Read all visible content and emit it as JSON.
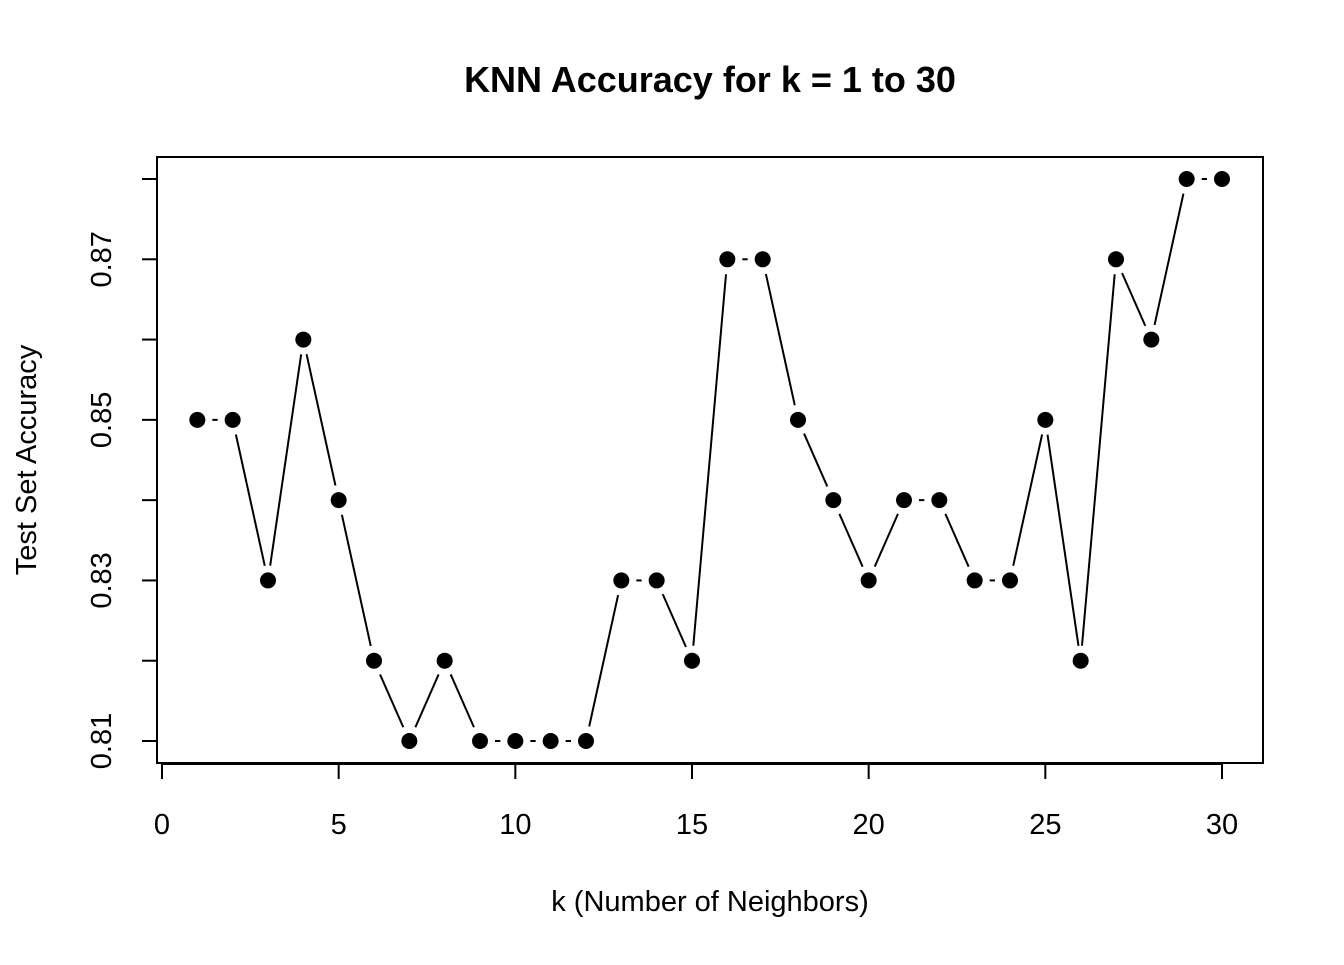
{
  "chart_data": {
    "type": "line",
    "title": "KNN Accuracy for k = 1 to 30",
    "xlabel": "k (Number of Neighbors)",
    "ylabel": "Test Set Accuracy",
    "x": [
      1,
      2,
      3,
      4,
      5,
      6,
      7,
      8,
      9,
      10,
      11,
      12,
      13,
      14,
      15,
      16,
      17,
      18,
      19,
      20,
      21,
      22,
      23,
      24,
      25,
      26,
      27,
      28,
      29,
      30
    ],
    "values": [
      0.85,
      0.85,
      0.83,
      0.86,
      0.84,
      0.82,
      0.81,
      0.82,
      0.81,
      0.81,
      0.81,
      0.81,
      0.83,
      0.83,
      0.82,
      0.87,
      0.87,
      0.85,
      0.84,
      0.83,
      0.84,
      0.84,
      0.83,
      0.83,
      0.85,
      0.82,
      0.87,
      0.86,
      0.88,
      0.88
    ],
    "xticks": [
      0,
      5,
      10,
      15,
      20,
      25,
      30
    ],
    "xtick_labels": [
      "0",
      "5",
      "10",
      "15",
      "20",
      "25",
      "30"
    ],
    "yticks": [
      0.81,
      0.82,
      0.83,
      0.84,
      0.85,
      0.86,
      0.87,
      0.88
    ],
    "ytick_labels": [
      "0.81",
      "",
      "0.83",
      "",
      "0.85",
      "",
      "0.87",
      ""
    ],
    "xlim": [
      0,
      30
    ],
    "ylim": [
      0.81,
      0.88
    ],
    "grid": false,
    "marker": "filled-circle",
    "line_style": "connected-with-gaps",
    "color": "#000000"
  }
}
